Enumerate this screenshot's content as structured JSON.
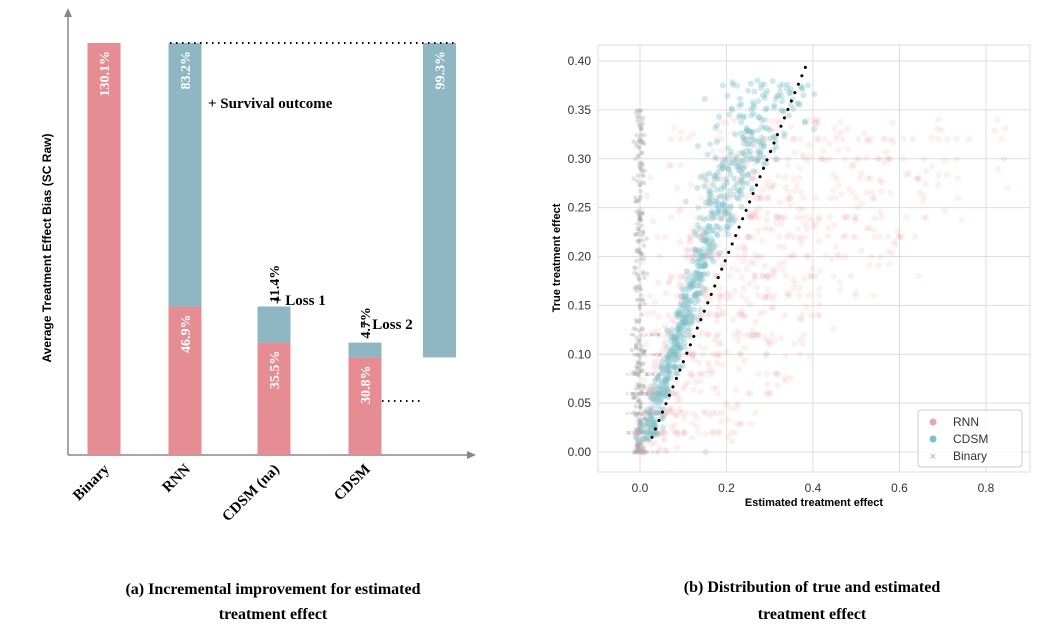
{
  "colors": {
    "red": "#e68d93",
    "blue": "#8fb6c3",
    "teal": "#7cc0c8",
    "binary": "#aaaaaa",
    "grid": "#dddddd",
    "axis": "#888888",
    "text": "#000000"
  },
  "chart_data": [
    {
      "type": "bar",
      "subtype": "stacked-waterfall",
      "ylabel": "Average Treatment Effect Bias (SC Raw)",
      "caption_line1": "(a) Incremental improvement for estimated",
      "caption_line2": "treatment effect",
      "categories": [
        "Binary",
        "RNN",
        "CDSM (na)",
        "CDSM"
      ],
      "series": [
        {
          "name": "base",
          "color": "red",
          "values": [
            130.1,
            46.9,
            35.5,
            30.8
          ],
          "labels": [
            "130.1%",
            "46.9%",
            "35.5%",
            "30.8%"
          ]
        },
        {
          "name": "increment",
          "color": "blue",
          "values": [
            0,
            83.2,
            11.4,
            4.7
          ],
          "labels": [
            "",
            "83.2%",
            "11.4%",
            "4.7%"
          ]
        }
      ],
      "final_bar": {
        "value": 99.3,
        "label": "99.3%",
        "from": 30.8,
        "to": 130.1
      },
      "annotations": {
        "survival": "+ Survival outcome",
        "loss1": "+ Loss 1",
        "loss2": "+ Loss 2"
      },
      "ylim": [
        0,
        130.1
      ]
    },
    {
      "type": "scatter",
      "caption_line1": "(b) Distribution of true and estimated",
      "caption_line2": "treatment effect",
      "xlabel": "Estimated treatment effect",
      "ylabel": "True treatment effect",
      "xlim": [
        -0.1,
        0.9
      ],
      "ylim": [
        -0.01,
        0.41
      ],
      "xticks": [
        0.0,
        0.2,
        0.4,
        0.6,
        0.8
      ],
      "xtick_labels": [
        "0.0",
        "0.2",
        "0.4",
        "0.6",
        "0.8"
      ],
      "yticks": [
        0.0,
        0.05,
        0.1,
        0.15,
        0.2,
        0.25,
        0.3,
        0.35,
        0.4
      ],
      "ytick_labels": [
        "0.00",
        "0.05",
        "0.10",
        "0.15",
        "0.20",
        "0.25",
        "0.30",
        "0.35",
        "0.40"
      ],
      "legend": {
        "position": "bottom-right",
        "entries": [
          {
            "name": "RNN",
            "marker": "circle",
            "color": "red"
          },
          {
            "name": "CDSM",
            "marker": "circle",
            "color": "teal"
          },
          {
            "name": "Binary",
            "marker": "x",
            "color": "binary"
          }
        ]
      },
      "reference_line": {
        "x": [
          0.0,
          0.4
        ],
        "y": [
          0.0,
          0.4
        ],
        "style": "dotted"
      },
      "series_description": {
        "RNN": "broad spread, x from -0.02 to 0.85, y from 0.00 to 0.35",
        "CDSM": "tight band following the diagonal, x 0.02 to 0.31, y 0.01 to 0.39",
        "Binary": "concentrated at x ~ 0.0, y from 0.00 to 0.35"
      }
    }
  ]
}
